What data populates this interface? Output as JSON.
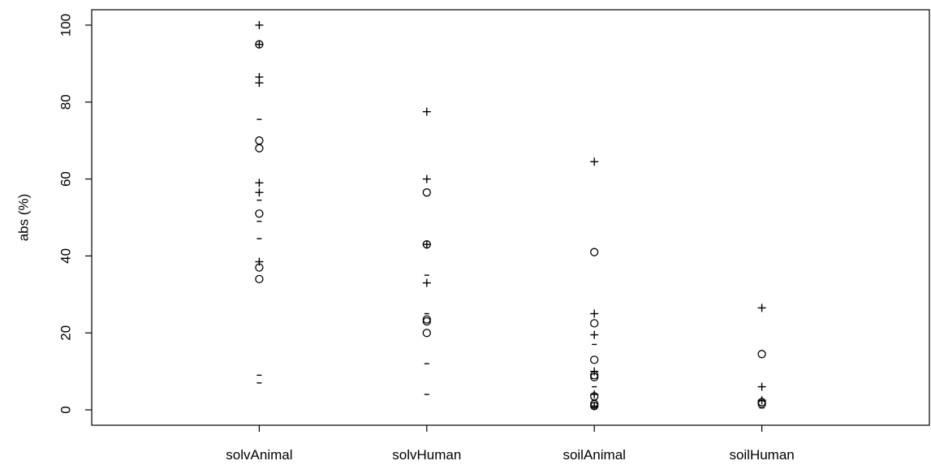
{
  "chart_data": {
    "type": "scatter",
    "title": "",
    "xlabel": "",
    "ylabel": "abs (%)",
    "categories": [
      "solvAnimal",
      "solvHuman",
      "soilAnimal",
      "soilHuman"
    ],
    "xlim": [
      0,
      5
    ],
    "ylim": [
      -4,
      104
    ],
    "yticks": [
      0,
      20,
      40,
      60,
      80,
      100
    ],
    "grid": false,
    "legend": "none",
    "series": [
      {
        "marker": "circle",
        "points": [
          {
            "category": "solvAnimal",
            "y": 95
          },
          {
            "category": "solvAnimal",
            "y": 70
          },
          {
            "category": "solvAnimal",
            "y": 68
          },
          {
            "category": "solvAnimal",
            "y": 51
          },
          {
            "category": "solvAnimal",
            "y": 37
          },
          {
            "category": "solvAnimal",
            "y": 34
          },
          {
            "category": "solvHuman",
            "y": 56.5
          },
          {
            "category": "solvHuman",
            "y": 43
          },
          {
            "category": "solvHuman",
            "y": 23.5
          },
          {
            "category": "solvHuman",
            "y": 23
          },
          {
            "category": "solvHuman",
            "y": 20
          },
          {
            "category": "soilAnimal",
            "y": 41
          },
          {
            "category": "soilAnimal",
            "y": 22.5
          },
          {
            "category": "soilAnimal",
            "y": 13
          },
          {
            "category": "soilAnimal",
            "y": 9
          },
          {
            "category": "soilAnimal",
            "y": 8.5
          },
          {
            "category": "soilAnimal",
            "y": 3.5
          },
          {
            "category": "soilAnimal",
            "y": 1.5
          },
          {
            "category": "soilAnimal",
            "y": 1
          },
          {
            "category": "soilHuman",
            "y": 14.5
          },
          {
            "category": "soilHuman",
            "y": 2
          },
          {
            "category": "soilHuman",
            "y": 1.5
          }
        ]
      },
      {
        "marker": "plus",
        "points": [
          {
            "category": "solvAnimal",
            "y": 100
          },
          {
            "category": "solvAnimal",
            "y": 95
          },
          {
            "category": "solvAnimal",
            "y": 86.5
          },
          {
            "category": "solvAnimal",
            "y": 85
          },
          {
            "category": "solvAnimal",
            "y": 59
          },
          {
            "category": "solvAnimal",
            "y": 56.5
          },
          {
            "category": "solvAnimal",
            "y": 38.5
          },
          {
            "category": "solvHuman",
            "y": 77.5
          },
          {
            "category": "solvHuman",
            "y": 60
          },
          {
            "category": "solvHuman",
            "y": 43
          },
          {
            "category": "solvHuman",
            "y": 33
          },
          {
            "category": "soilAnimal",
            "y": 64.5
          },
          {
            "category": "soilAnimal",
            "y": 25
          },
          {
            "category": "soilAnimal",
            "y": 19.5
          },
          {
            "category": "soilAnimal",
            "y": 10
          },
          {
            "category": "soilAnimal",
            "y": 4
          },
          {
            "category": "soilAnimal",
            "y": 1
          },
          {
            "category": "soilHuman",
            "y": 26.5
          },
          {
            "category": "soilHuman",
            "y": 6
          },
          {
            "category": "soilHuman",
            "y": 2.5
          }
        ]
      },
      {
        "marker": "dash",
        "points": [
          {
            "category": "solvAnimal",
            "y": 75.5
          },
          {
            "category": "solvAnimal",
            "y": 54.5
          },
          {
            "category": "solvAnimal",
            "y": 49
          },
          {
            "category": "solvAnimal",
            "y": 44.5
          },
          {
            "category": "solvAnimal",
            "y": 9
          },
          {
            "category": "solvAnimal",
            "y": 7
          },
          {
            "category": "solvHuman",
            "y": 35
          },
          {
            "category": "solvHuman",
            "y": 25
          },
          {
            "category": "solvHuman",
            "y": 12
          },
          {
            "category": "solvHuman",
            "y": 4
          },
          {
            "category": "soilAnimal",
            "y": 17
          },
          {
            "category": "soilAnimal",
            "y": 6
          },
          {
            "category": "soilAnimal",
            "y": 2.5
          },
          {
            "category": "soilAnimal",
            "y": 0.5
          },
          {
            "category": "soilHuman",
            "y": 0.5
          }
        ]
      }
    ]
  }
}
